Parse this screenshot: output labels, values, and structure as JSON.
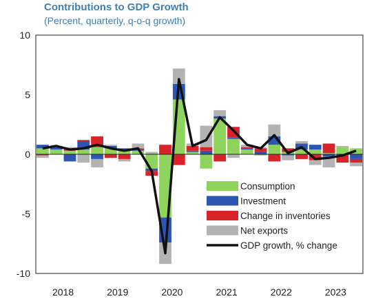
{
  "chart_data": {
    "type": "bar",
    "title": "Contributions to GDP Growth",
    "subtitle": "(Percent, quarterly, q-o-q growth)",
    "xlabel": "",
    "ylabel": "",
    "ylim": [
      -10,
      10
    ],
    "yticks": [
      10,
      5,
      0,
      -5,
      -10
    ],
    "xtick_labels": [
      "2018",
      "2019",
      "2020",
      "2021",
      "2022",
      "2023"
    ],
    "grid": false,
    "legend_position": "bottom-right",
    "categories": [
      "2018Q1",
      "2018Q2",
      "2018Q3",
      "2018Q4",
      "2019Q1",
      "2019Q2",
      "2019Q3",
      "2019Q4",
      "2020Q1",
      "2020Q2",
      "2020Q3",
      "2020Q4",
      "2021Q1",
      "2021Q2",
      "2021Q3",
      "2021Q4",
      "2022Q1",
      "2022Q2",
      "2022Q3",
      "2022Q4",
      "2023Q1",
      "2023Q2",
      "2023Q3",
      "2023Q4"
    ],
    "colors": {
      "Consumption": "#8ed35c",
      "Investment": "#2d55b4",
      "Change in inventories": "#d8232a",
      "Net exports": "#b3b3b3",
      "GDP growth, % change": "#111111"
    },
    "series": [
      {
        "name": "Consumption",
        "kind": "bar",
        "values": [
          0.5,
          0.4,
          0.3,
          0.4,
          0.6,
          0.5,
          0.4,
          0.3,
          -1.2,
          -5.3,
          4.6,
          0.2,
          -1.2,
          3.0,
          1.3,
          0.4,
          -0.1,
          0.8,
          0.2,
          0.4,
          0.4,
          0.1,
          0.6,
          0.5
        ]
      },
      {
        "name": "Investment",
        "kind": "bar",
        "values": [
          0.3,
          0.2,
          -0.6,
          0.7,
          -0.4,
          0.2,
          0.1,
          0.1,
          -0.2,
          -2.1,
          1.3,
          0.1,
          0.3,
          0.2,
          0.1,
          0.1,
          0.2,
          0.7,
          -0.1,
          0.5,
          0.4,
          -0.2,
          -0.1,
          -0.4
        ]
      },
      {
        "name": "Change in inventories",
        "kind": "bar",
        "values": [
          -0.1,
          0.1,
          0.1,
          0.1,
          0.9,
          -0.3,
          -0.4,
          0.1,
          -0.4,
          0.8,
          -0.9,
          0.4,
          0.3,
          -0.6,
          0.9,
          0.1,
          0.3,
          -0.6,
          0.3,
          -0.4,
          -0.5,
          0.8,
          -0.6,
          -0.3
        ]
      },
      {
        "name": "Net exports",
        "kind": "bar",
        "values": [
          -0.2,
          0.0,
          0.2,
          -0.7,
          -0.7,
          0.1,
          -0.2,
          0.4,
          0.2,
          -1.8,
          1.3,
          0.2,
          1.8,
          0.5,
          -0.3,
          0.2,
          0.1,
          1.0,
          -0.4,
          0.2,
          -0.4,
          -0.9,
          0.1,
          -0.3
        ]
      },
      {
        "name": "GDP growth, % change",
        "kind": "line",
        "values": [
          0.5,
          0.7,
          0.4,
          0.5,
          0.8,
          0.5,
          0.3,
          0.5,
          -1.4,
          -8.3,
          6.3,
          0.7,
          1.2,
          3.1,
          2.0,
          0.8,
          0.5,
          1.6,
          0.1,
          0.6,
          -0.4,
          -0.3,
          -0.1,
          0.3
        ]
      }
    ]
  }
}
